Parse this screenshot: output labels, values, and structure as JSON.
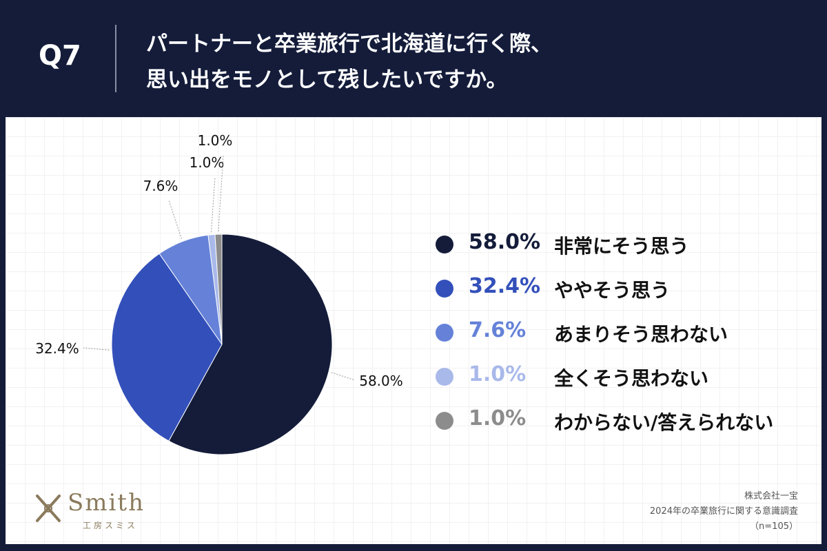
{
  "header": {
    "question_number": "Q7",
    "title_line1": "パートナーと卒業旅行で北海道に行く際、",
    "title_line2": "思い出をモノとして残したいですか。"
  },
  "chart_data": {
    "type": "pie",
    "title": "パートナーと卒業旅行で北海道に行く際、思い出をモノとして残したいですか。",
    "slices": [
      {
        "label": "非常にそう思う",
        "value": 58.0,
        "display": "58.0%",
        "color": "#141c3a"
      },
      {
        "label": "ややそう思う",
        "value": 32.4,
        "display": "32.4%",
        "color": "#3350ba"
      },
      {
        "label": "あまりそう思わない",
        "value": 7.6,
        "display": "7.6%",
        "color": "#6582d8"
      },
      {
        "label": "全くそう思わない",
        "value": 1.0,
        "display": "1.0%",
        "color": "#a9b9ea"
      },
      {
        "label": "わからない/答えられない",
        "value": 1.0,
        "display": "1.0%",
        "color": "#8c8c8c"
      }
    ],
    "legend_placement": "right"
  },
  "legend": {
    "items": [
      {
        "pct": "58.0%",
        "label": "非常にそう思う",
        "color": "#141c3a"
      },
      {
        "pct": "32.4%",
        "label": "ややそう思う",
        "color": "#3350ba"
      },
      {
        "pct": "7.6%",
        "label": "あまりそう思わない",
        "color": "#6582d8"
      },
      {
        "pct": "1.0%",
        "label": "全くそう思わない",
        "color": "#a9b9ea"
      },
      {
        "pct": "1.0%",
        "label": "わからない/答えられない",
        "color": "#8c8c8c"
      }
    ]
  },
  "logo": {
    "name": "Smith",
    "subtitle": "工房スミス"
  },
  "source": {
    "company": "株式会社一宝",
    "survey": "2024年の卒業旅行に関する意識調査",
    "sample": "（n=105）"
  }
}
